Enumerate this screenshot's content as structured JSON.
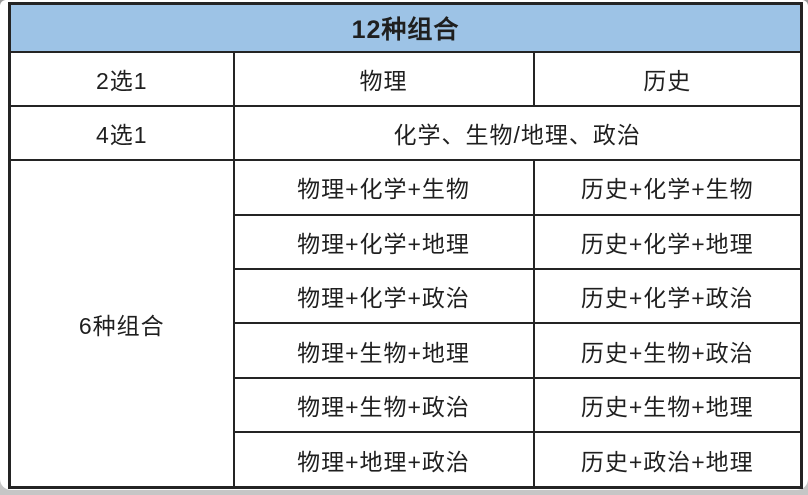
{
  "table": {
    "header": "12种组合",
    "choose2": {
      "label": "2选1",
      "physics": "物理",
      "history": "历史"
    },
    "choose4": {
      "label": "4选1",
      "subjects": "化学、生物/地理、政治"
    },
    "combos": {
      "label": "6种组合",
      "rows": [
        {
          "physics": "物理+化学+生物",
          "history": "历史+化学+生物"
        },
        {
          "physics": "物理+化学+地理",
          "history": "历史+化学+地理"
        },
        {
          "physics": "物理+化学+政治",
          "history": "历史+化学+政治"
        },
        {
          "physics": "物理+生物+地理",
          "history": "历史+生物+政治"
        },
        {
          "physics": "物理+生物+政治",
          "history": "历史+生物+地理"
        },
        {
          "physics": "物理+地理+政治",
          "history": "历史+政治+地理"
        }
      ]
    }
  },
  "colors": {
    "header_bg": "#9dc3e6",
    "border": "#242424",
    "text": "#1f1f1f",
    "card_bg": "#ffffff"
  }
}
